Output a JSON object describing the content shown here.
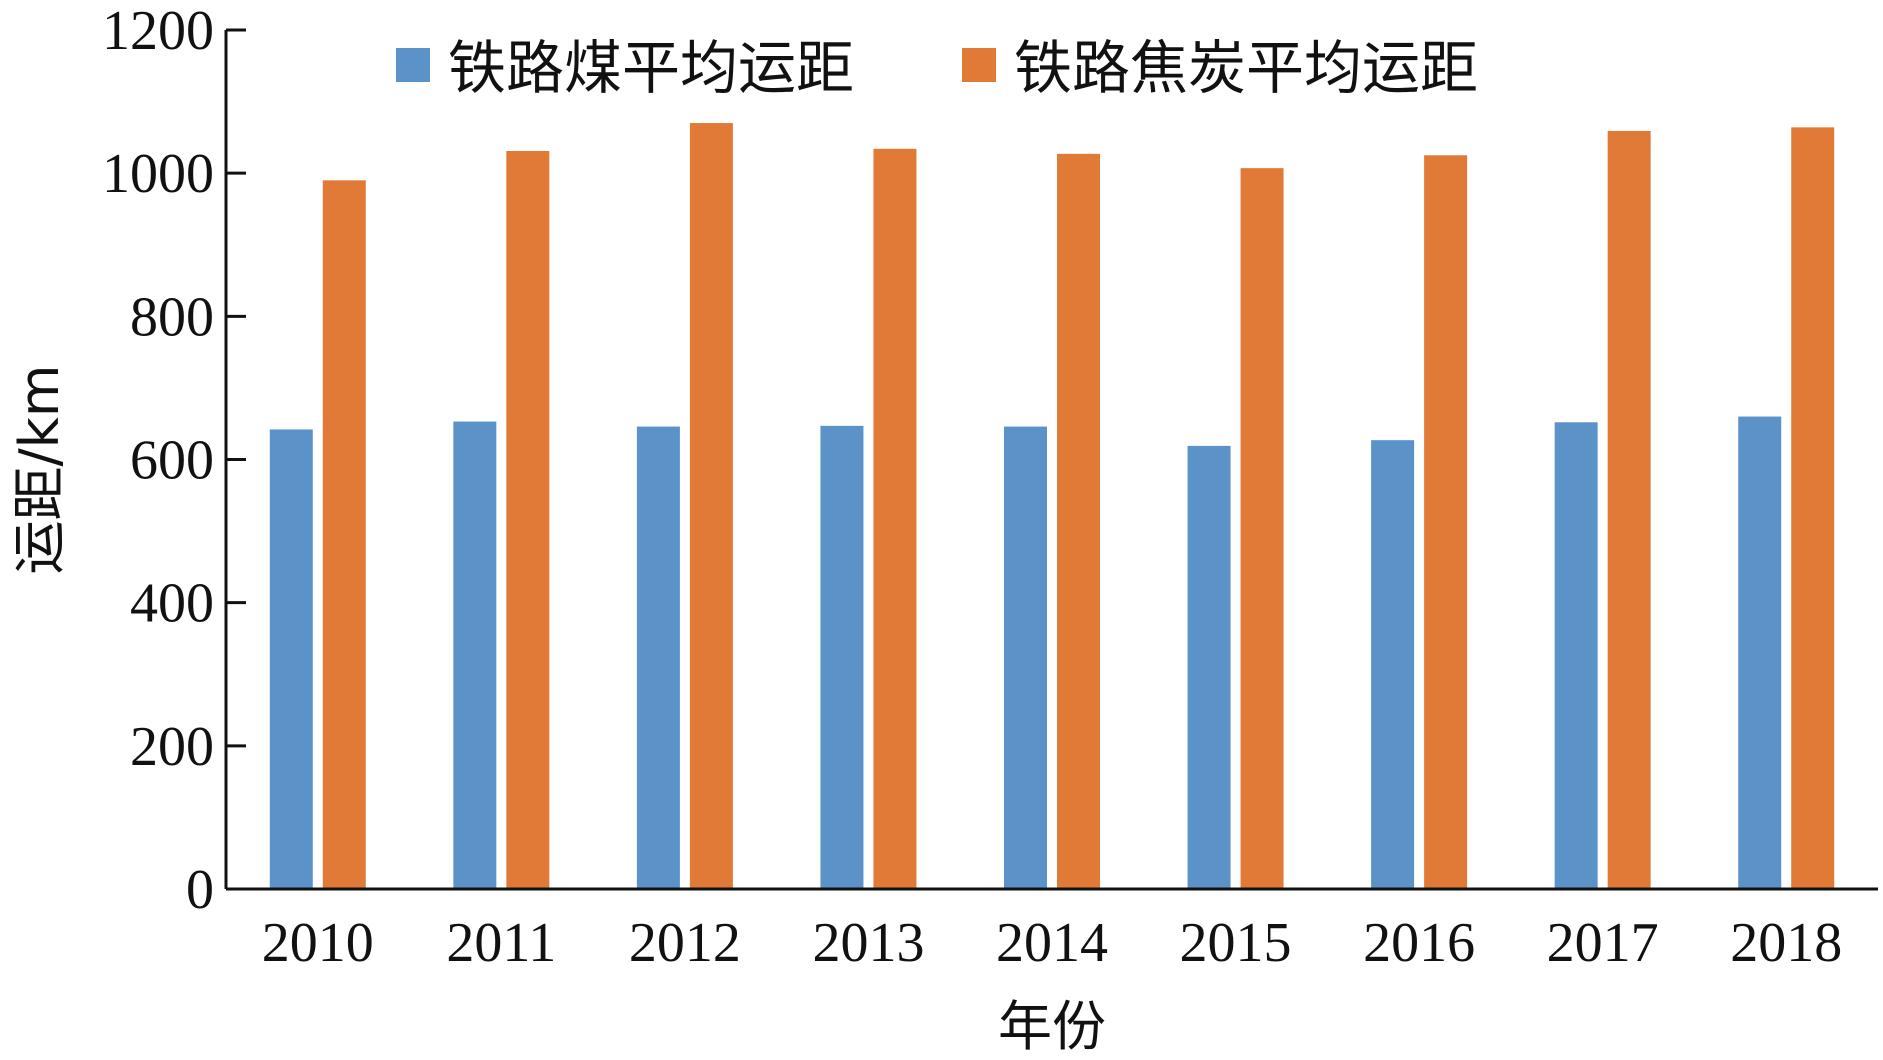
{
  "chart_data": {
    "type": "bar",
    "categories": [
      "2010",
      "2011",
      "2012",
      "2013",
      "2014",
      "2015",
      "2016",
      "2017",
      "2018"
    ],
    "series": [
      {
        "name": "铁路煤平均运距",
        "values": [
          642,
          653,
          646,
          647,
          646,
          619,
          627,
          652,
          660
        ],
        "color": "#5b93c8"
      },
      {
        "name": "铁路焦炭平均运距",
        "values": [
          990,
          1031,
          1070,
          1034,
          1027,
          1007,
          1025,
          1059,
          1064
        ],
        "color": "#e07a36"
      }
    ],
    "title": "",
    "xlabel": "年份",
    "ylabel": "运距/km",
    "ylim": [
      0,
      1200
    ],
    "yticks": [
      0,
      200,
      400,
      600,
      800,
      1000,
      1200
    ],
    "yticks_labels": [
      "0",
      "200",
      "400",
      "600",
      "800",
      "1000",
      "1200"
    ],
    "grid": false,
    "legend_position": "top"
  }
}
